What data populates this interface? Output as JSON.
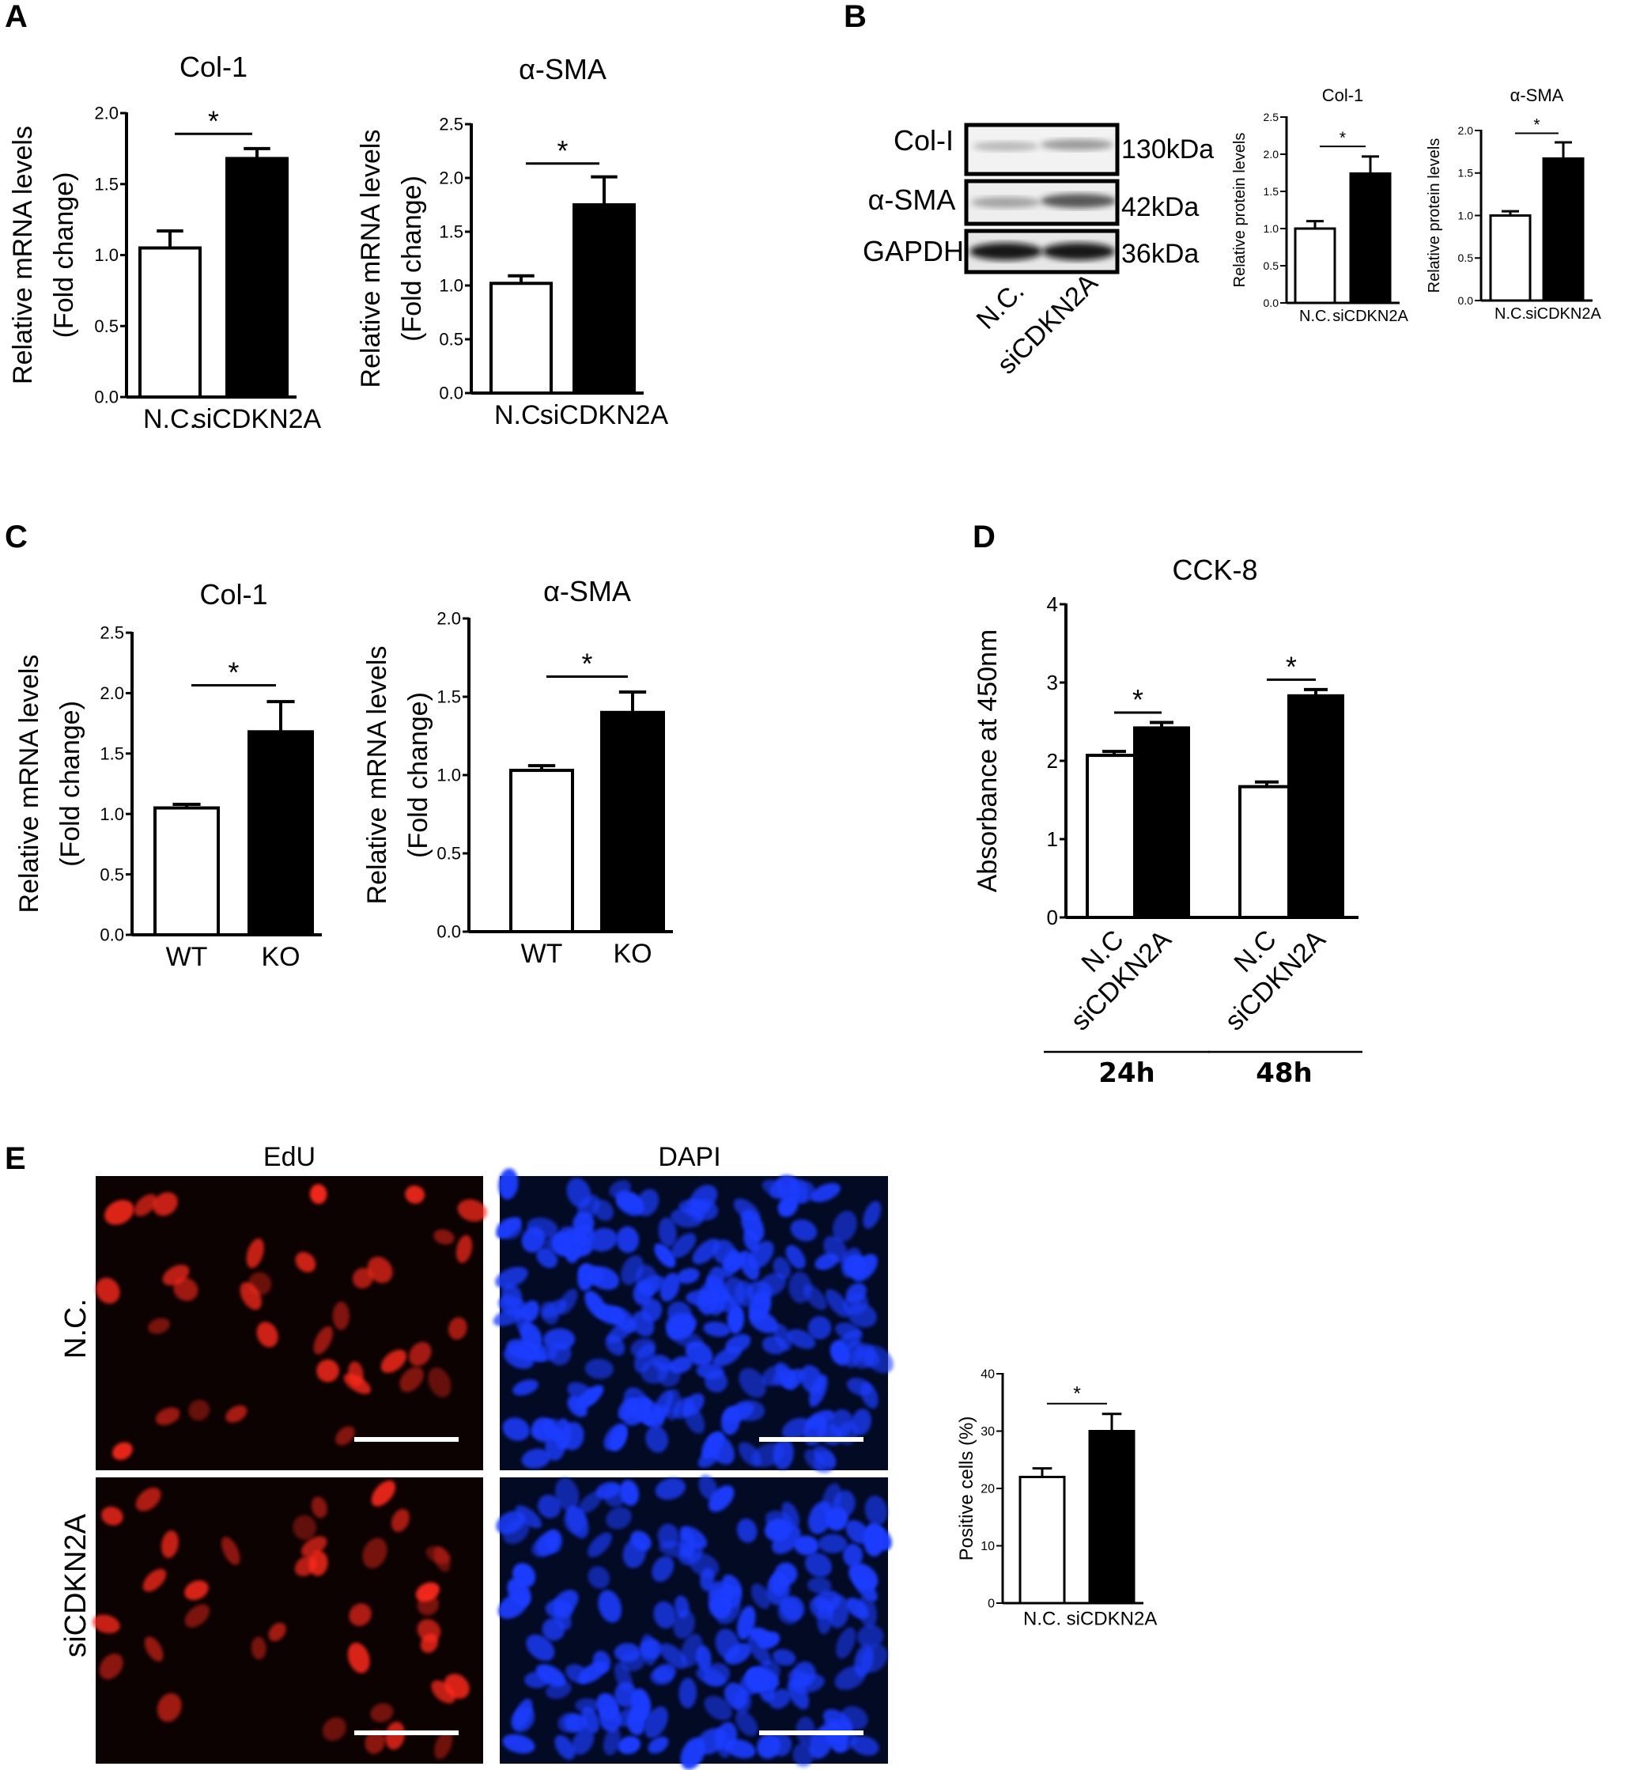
{
  "panel_letters": [
    "A",
    "B",
    "C",
    "D",
    "E"
  ],
  "blot": {
    "rows": [
      "Col-I",
      "α-SMA",
      "GAPDH"
    ],
    "sizes": [
      "130kDa",
      "42kDa",
      "36kDa"
    ],
    "lanes": [
      "N.C.",
      "siCDKN2A"
    ]
  },
  "cck8": {
    "groups": [
      "24h",
      "48h"
    ]
  },
  "edu": {
    "columns": [
      "EdU",
      "DAPI"
    ],
    "rows": [
      "N.C.",
      "siCDKN2A"
    ]
  },
  "colors": {
    "control": "#ffffff",
    "treated": "#000000",
    "edu": "#ff2a1a",
    "dapi": "#1e3cff"
  },
  "chart_data": [
    {
      "id": "a1",
      "type": "bar",
      "title": "Col-1",
      "ylabel": [
        "Relative mRNA levels",
        "(Fold change)"
      ],
      "categories": [
        "N.C.",
        "siCDKN2A"
      ],
      "values": [
        1.05,
        1.68
      ],
      "errors": [
        0.12,
        0.07
      ],
      "ylim": [
        0,
        2.0
      ],
      "yticks": [
        "0.0",
        "0.5",
        "1.0",
        "1.5",
        "2.0"
      ],
      "significance": "*"
    },
    {
      "id": "a2",
      "type": "bar",
      "title": "α-SMA",
      "ylabel": [
        "Relative mRNA levels",
        "(Fold change)"
      ],
      "categories": [
        "N.C.",
        "siCDKN2A"
      ],
      "values": [
        1.02,
        1.75
      ],
      "errors": [
        0.07,
        0.26
      ],
      "ylim": [
        0,
        2.5
      ],
      "yticks": [
        "0.0",
        "0.5",
        "1.0",
        "1.5",
        "2.0",
        "2.5"
      ],
      "significance": "*"
    },
    {
      "id": "b1",
      "type": "bar",
      "title": "Col-1",
      "ylabel": [
        "Relative protein levels"
      ],
      "categories": [
        "N.C.",
        "siCDKN2A"
      ],
      "values": [
        1.0,
        1.74
      ],
      "errors": [
        0.1,
        0.23
      ],
      "ylim": [
        0,
        2.5
      ],
      "yticks": [
        "0.0",
        "0.5",
        "1.0",
        "1.5",
        "2.0",
        "2.5"
      ],
      "significance": "*"
    },
    {
      "id": "b2",
      "type": "bar",
      "title": "α-SMA",
      "ylabel": [
        "Relative protein levels"
      ],
      "categories": [
        "N.C.",
        "siCDKN2A"
      ],
      "values": [
        1.0,
        1.67
      ],
      "errors": [
        0.05,
        0.19
      ],
      "ylim": [
        0,
        2.0
      ],
      "yticks": [
        "0.0",
        "0.5",
        "1.0",
        "1.5",
        "2.0"
      ],
      "significance": "*"
    },
    {
      "id": "c1",
      "type": "bar",
      "title": "Col-1",
      "ylabel": [
        "Relative mRNA levels",
        "(Fold change)"
      ],
      "categories": [
        "WT",
        "KO"
      ],
      "values": [
        1.05,
        1.68
      ],
      "errors": [
        0.03,
        0.25
      ],
      "ylim": [
        0,
        2.5
      ],
      "yticks": [
        "0.0",
        "0.5",
        "1.0",
        "1.5",
        "2.0",
        "2.5"
      ],
      "significance": "*"
    },
    {
      "id": "c2",
      "type": "bar",
      "title": "α-SMA",
      "ylabel": [
        "Relative mRNA levels",
        "(Fold change)"
      ],
      "categories": [
        "WT",
        "KO"
      ],
      "values": [
        1.03,
        1.4
      ],
      "errors": [
        0.03,
        0.13
      ],
      "ylim": [
        0,
        2.0
      ],
      "yticks": [
        "0.0",
        "0.5",
        "1.0",
        "1.5",
        "2.0"
      ],
      "significance": "*"
    },
    {
      "id": "d",
      "type": "bar",
      "title": "CCK-8",
      "ylabel": [
        "Absorbance at 450nm"
      ],
      "categories": [
        "N.C",
        "siCDKN2A",
        "N.C",
        "siCDKN2A"
      ],
      "values": [
        2.07,
        2.42,
        1.67,
        2.83
      ],
      "errors": [
        0.05,
        0.07,
        0.06,
        0.08
      ],
      "ylim": [
        0,
        4
      ],
      "yticks": [
        "0",
        "1",
        "2",
        "3",
        "4"
      ],
      "significance": "*"
    },
    {
      "id": "e",
      "type": "bar",
      "title": "",
      "ylabel": [
        "Positive cells (%)"
      ],
      "categories": [
        "N.C.",
        "siCDKN2A"
      ],
      "values": [
        22,
        30
      ],
      "errors": [
        1.5,
        3
      ],
      "ylim": [
        0,
        40
      ],
      "yticks": [
        "0",
        "10",
        "20",
        "30",
        "40"
      ],
      "significance": "*"
    }
  ]
}
